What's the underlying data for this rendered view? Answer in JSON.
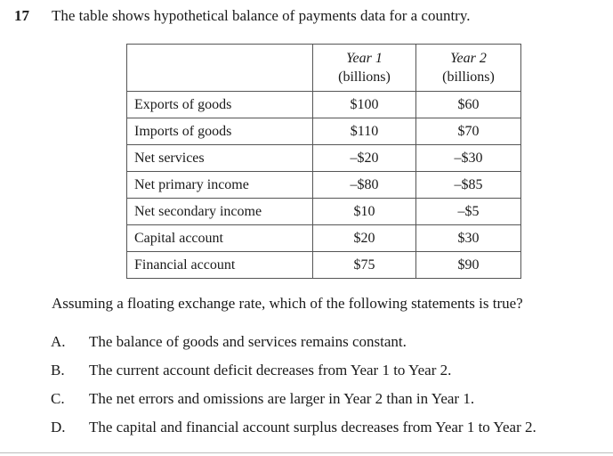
{
  "question": {
    "number": "17",
    "stem": "The table shows hypothetical balance of payments data for a country.",
    "table": {
      "header": {
        "blank": "",
        "year1": "Year 1",
        "year1_unit": "(billions)",
        "year2": "Year 2",
        "year2_unit": "(billions)"
      },
      "rows": [
        {
          "label": "Exports of goods",
          "year1": "$100",
          "year2": "$60"
        },
        {
          "label": "Imports of goods",
          "year1": "$110",
          "year2": "$70"
        },
        {
          "label": "Net services",
          "year1": "–$20",
          "year2": "–$30"
        },
        {
          "label": "Net primary income",
          "year1": "–$80",
          "year2": "–$85"
        },
        {
          "label": "Net secondary income",
          "year1": "$10",
          "year2": "–$5"
        },
        {
          "label": "Capital account",
          "year1": "$20",
          "year2": "$30"
        },
        {
          "label": "Financial account",
          "year1": "$75",
          "year2": "$90"
        }
      ]
    },
    "prompt": "Assuming a floating exchange rate, which of the following statements is true?",
    "options": [
      {
        "letter": "A.",
        "text": "The balance of goods and services remains constant."
      },
      {
        "letter": "B.",
        "text": "The current account deficit decreases from Year 1 to Year 2."
      },
      {
        "letter": "C.",
        "text": "The net errors and omissions are larger in Year 2 than in Year 1."
      },
      {
        "letter": "D.",
        "text": "The capital and financial account surplus decreases from Year 1 to Year 2."
      }
    ]
  }
}
